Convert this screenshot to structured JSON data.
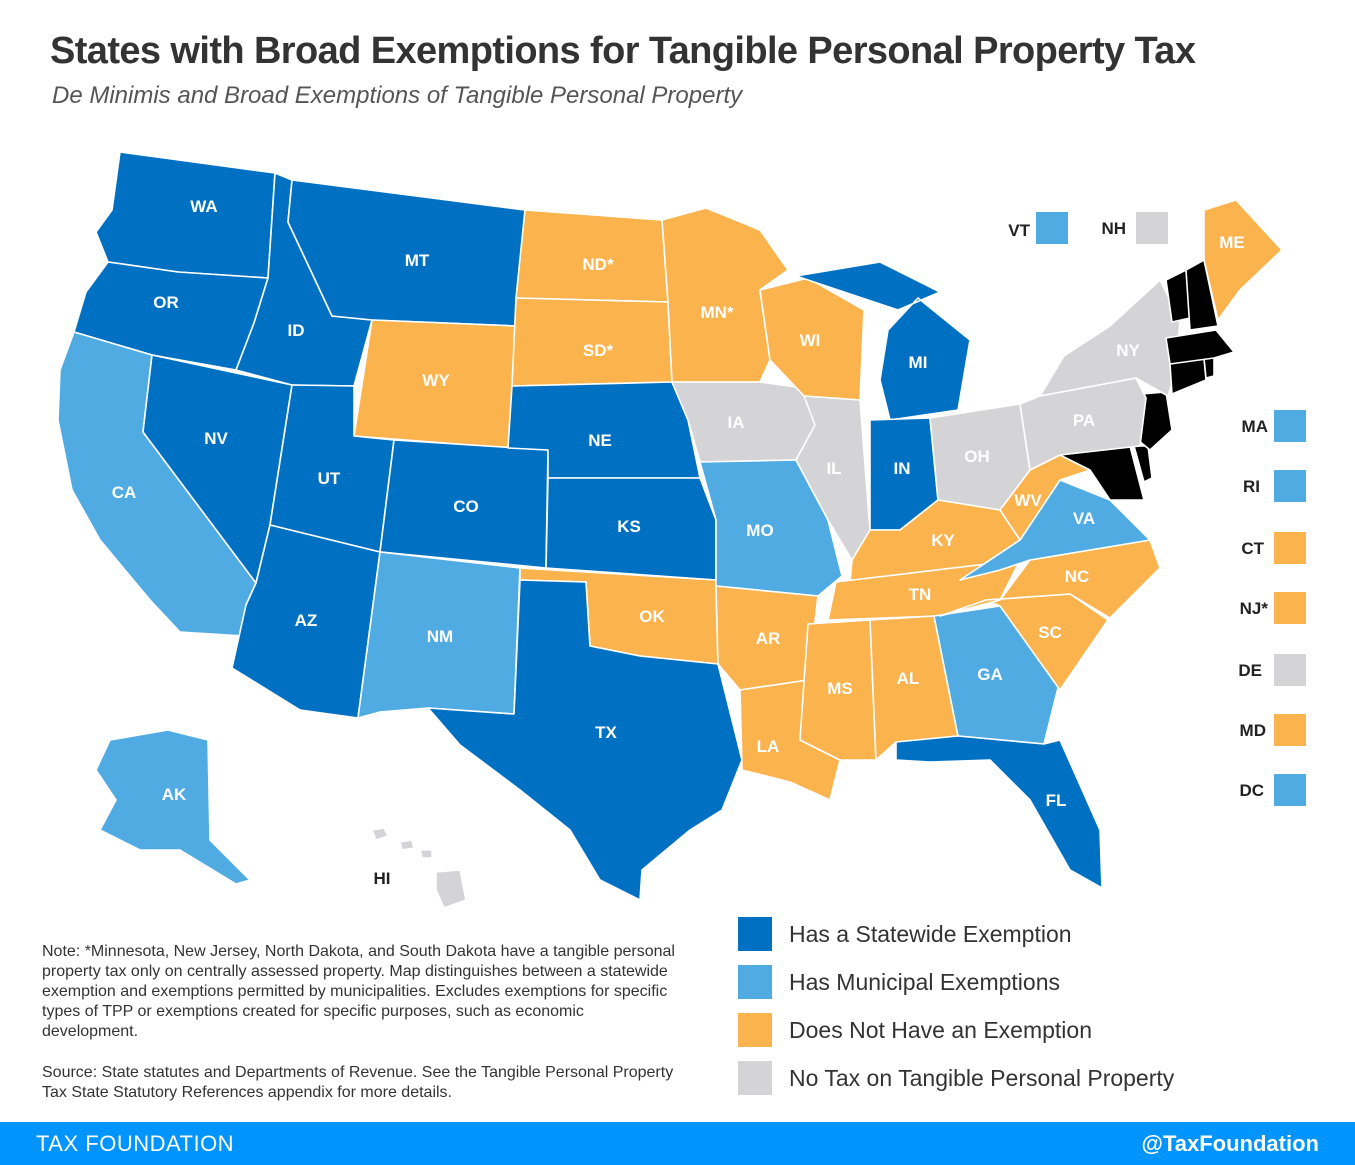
{
  "title": "States with Broad Exemptions for Tangible Personal Property Tax",
  "subtitle": "De Minimis and Broad Exemptions of Tangible Personal Property",
  "colors": {
    "statewide": "#0071c2",
    "municipal": "#4fabe1",
    "none": "#fbb34e",
    "notax": "#d4d4d6"
  },
  "states": {
    "WA": {
      "label": "WA",
      "category": "statewide"
    },
    "OR": {
      "label": "OR",
      "category": "statewide"
    },
    "CA": {
      "label": "CA",
      "category": "municipal"
    },
    "NV": {
      "label": "NV",
      "category": "statewide"
    },
    "ID": {
      "label": "ID",
      "category": "statewide"
    },
    "MT": {
      "label": "MT",
      "category": "statewide"
    },
    "WY": {
      "label": "WY",
      "category": "none"
    },
    "UT": {
      "label": "UT",
      "category": "statewide"
    },
    "AZ": {
      "label": "AZ",
      "category": "statewide"
    },
    "CO": {
      "label": "CO",
      "category": "statewide"
    },
    "NM": {
      "label": "NM",
      "category": "municipal"
    },
    "ND": {
      "label": "ND*",
      "category": "none"
    },
    "SD": {
      "label": "SD*",
      "category": "none"
    },
    "NE": {
      "label": "NE",
      "category": "statewide"
    },
    "KS": {
      "label": "KS",
      "category": "statewide"
    },
    "OK": {
      "label": "OK",
      "category": "none"
    },
    "TX": {
      "label": "TX",
      "category": "statewide"
    },
    "MN": {
      "label": "MN*",
      "category": "none"
    },
    "IA": {
      "label": "IA",
      "category": "notax"
    },
    "MO": {
      "label": "MO",
      "category": "municipal"
    },
    "AR": {
      "label": "AR",
      "category": "none"
    },
    "LA": {
      "label": "LA",
      "category": "none"
    },
    "WI": {
      "label": "WI",
      "category": "none"
    },
    "IL": {
      "label": "IL",
      "category": "notax"
    },
    "MI": {
      "label": "MI",
      "category": "statewide"
    },
    "IN": {
      "label": "IN",
      "category": "statewide"
    },
    "OH": {
      "label": "OH",
      "category": "notax"
    },
    "KY": {
      "label": "KY",
      "category": "none"
    },
    "TN": {
      "label": "TN",
      "category": "none"
    },
    "MS": {
      "label": "MS",
      "category": "none"
    },
    "AL": {
      "label": "AL",
      "category": "none"
    },
    "GA": {
      "label": "GA",
      "category": "municipal"
    },
    "FL": {
      "label": "FL",
      "category": "statewide"
    },
    "SC": {
      "label": "SC",
      "category": "none"
    },
    "NC": {
      "label": "NC",
      "category": "none"
    },
    "VA": {
      "label": "VA",
      "category": "municipal"
    },
    "WV": {
      "label": "WV",
      "category": "none"
    },
    "PA": {
      "label": "PA",
      "category": "notax"
    },
    "NY": {
      "label": "NY",
      "category": "notax"
    },
    "ME": {
      "label": "ME",
      "category": "none"
    },
    "AK": {
      "label": "AK",
      "category": "municipal"
    },
    "HI": {
      "label": "HI",
      "category": "notax"
    }
  },
  "small_states": [
    {
      "label": "VT",
      "category": "municipal"
    },
    {
      "label": "NH",
      "category": "notax"
    },
    {
      "label": "MA",
      "category": "municipal"
    },
    {
      "label": "RI",
      "category": "municipal"
    },
    {
      "label": "CT",
      "category": "none"
    },
    {
      "label": "NJ*",
      "category": "none"
    },
    {
      "label": "DE",
      "category": "notax"
    },
    {
      "label": "MD",
      "category": "none"
    },
    {
      "label": "DC",
      "category": "municipal"
    }
  ],
  "legend": [
    {
      "label": "Has a Statewide Exemption",
      "category": "statewide"
    },
    {
      "label": "Has Municipal Exemptions",
      "category": "municipal"
    },
    {
      "label": "Does Not Have an Exemption",
      "category": "none"
    },
    {
      "label": "No Tax on Tangible Personal Property",
      "category": "notax"
    }
  ],
  "note": "Note: *Minnesota, New Jersey, North Dakota, and South Dakota have a tangible personal property tax only on centrally assessed property. Map distinguishes between a statewide exemption and exemptions permitted by municipalities. Excludes exemptions for specific types of TPP or exemptions created for specific purposes, such as economic development.",
  "source": "Source: State statutes and Departments of Revenue. See the Tangible Personal Property Tax State Statutory References appendix for more details.",
  "footer": {
    "brand": "TAX FOUNDATION",
    "handle": "@TaxFoundation"
  }
}
